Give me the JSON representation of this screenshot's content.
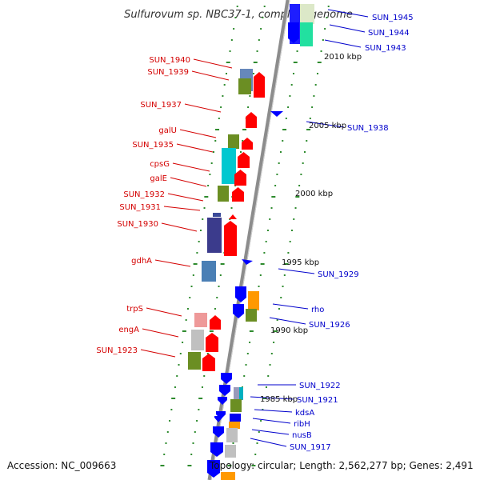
{
  "title": "Sulfurovum sp. NBC37-1, complete genome",
  "accession": "Accession: NC_009663",
  "topology": "Topology: circular; Length: 2,562,277 bp; Genes: 2,491",
  "colors": {
    "left_label": "#d40000",
    "right_label": "#0000cc",
    "backbone": "#8c8c8c",
    "tick": "#2e8b2e",
    "arrow_red": "#ff0000",
    "arrow_blue": "#0000ff"
  },
  "left_labels": [
    "SUN_1940",
    "SUN_1939",
    "SUN_1937",
    "galU",
    "SUN_1935",
    "cpsG",
    "galE",
    "SUN_1932",
    "SUN_1931",
    "SUN_1930",
    "gdhA",
    "trpS",
    "engA",
    "SUN_1923"
  ],
  "right_labels": [
    "SUN_1945",
    "SUN_1944",
    "SUN_1943",
    "SUN_1938",
    "SUN_1929",
    "rho",
    "SUN_1926",
    "SUN_1922",
    "SUN_1921",
    "kdsA",
    "ribH",
    "nusB",
    "SUN_1917"
  ],
  "scale_labels": [
    "2010 kbp",
    "2005 kbp",
    "2000 kbp",
    "1995 kbp",
    "1990 kbp",
    "1985 kbp"
  ]
}
